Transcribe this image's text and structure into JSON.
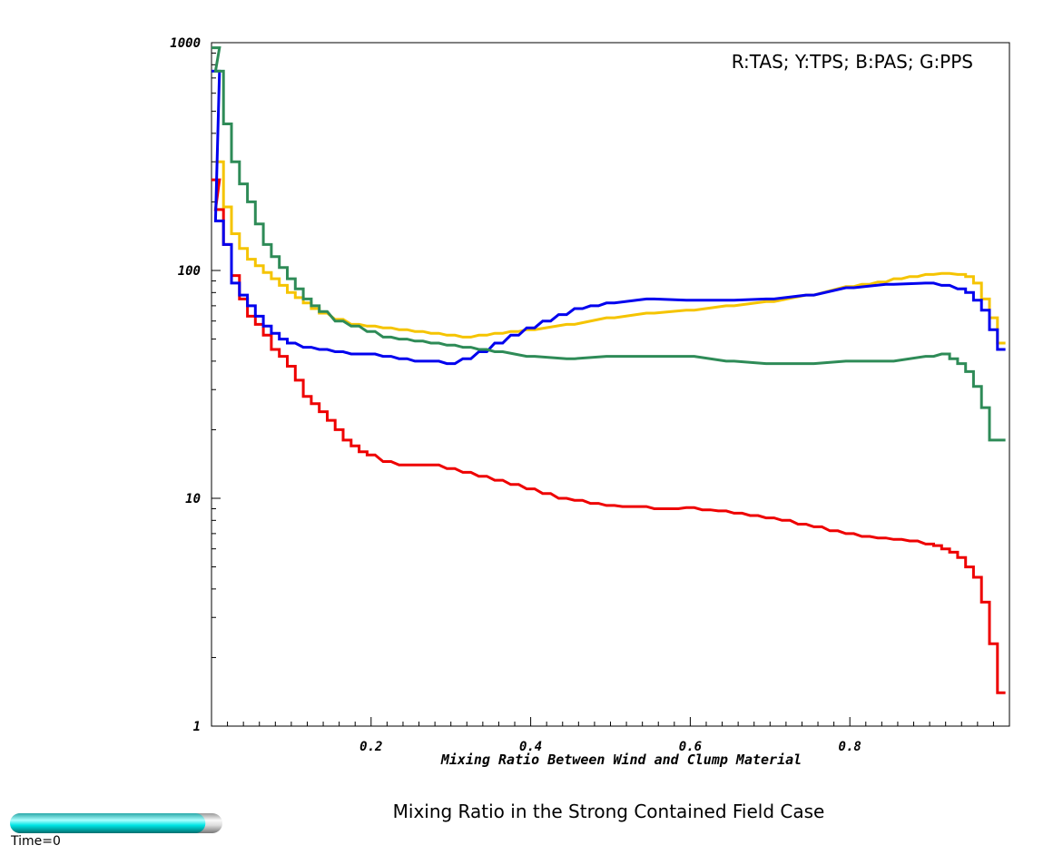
{
  "title": "Mixing Ratio in the Strong Contained Field Case",
  "time_label": "Time=0",
  "time_progress": 0.92,
  "chart_data": {
    "type": "line",
    "step": true,
    "xlabel": "Mixing Ratio Between Wind and Clump Material",
    "ylabel": "",
    "xlim": [
      0,
      1
    ],
    "ylim": [
      1,
      1000
    ],
    "yscale": "log",
    "xticks": [
      0.2,
      0.4,
      0.6,
      0.8
    ],
    "xtick_labels": [
      "0.2",
      "0.4",
      "0.6",
      "0.8"
    ],
    "yticks": [
      1,
      10,
      100,
      1000
    ],
    "ytick_labels": [
      "1",
      "10",
      "100",
      "1000"
    ],
    "legend_text": "R:TAS; Y:TPS; B:PAS; G:PPS",
    "legend_position": "top-right",
    "grid": false,
    "series": [
      {
        "key": "R",
        "color": "#ee0000",
        "x": [
          0.005,
          0.01,
          0.02,
          0.03,
          0.04,
          0.05,
          0.06,
          0.07,
          0.08,
          0.09,
          0.1,
          0.11,
          0.12,
          0.13,
          0.14,
          0.15,
          0.16,
          0.17,
          0.18,
          0.19,
          0.2,
          0.22,
          0.24,
          0.26,
          0.28,
          0.3,
          0.32,
          0.34,
          0.36,
          0.38,
          0.4,
          0.42,
          0.44,
          0.46,
          0.48,
          0.5,
          0.52,
          0.54,
          0.56,
          0.58,
          0.6,
          0.62,
          0.64,
          0.66,
          0.68,
          0.7,
          0.72,
          0.74,
          0.76,
          0.78,
          0.8,
          0.82,
          0.84,
          0.86,
          0.88,
          0.9,
          0.91,
          0.92,
          0.93,
          0.94,
          0.95,
          0.96,
          0.97,
          0.98,
          0.99
        ],
        "y": [
          250,
          185,
          130,
          95,
          75,
          63,
          58,
          52,
          45,
          42,
          38,
          33,
          28,
          26,
          24,
          22,
          20,
          18,
          17,
          16,
          15.5,
          14.5,
          14,
          14,
          14,
          13.5,
          13,
          12.5,
          12,
          11.5,
          11,
          10.5,
          10,
          9.8,
          9.5,
          9.3,
          9.2,
          9.2,
          9,
          9,
          9.1,
          8.9,
          8.8,
          8.6,
          8.4,
          8.2,
          8,
          7.7,
          7.5,
          7.2,
          7,
          6.8,
          6.7,
          6.6,
          6.5,
          6.3,
          6.2,
          6,
          5.8,
          5.5,
          5,
          4.5,
          3.5,
          2.3,
          1.4
        ]
      },
      {
        "key": "Y",
        "color": "#f5c400",
        "x": [
          0.01,
          0.02,
          0.03,
          0.04,
          0.05,
          0.06,
          0.07,
          0.08,
          0.09,
          0.1,
          0.11,
          0.12,
          0.13,
          0.14,
          0.16,
          0.18,
          0.2,
          0.22,
          0.24,
          0.26,
          0.28,
          0.3,
          0.32,
          0.34,
          0.36,
          0.38,
          0.4,
          0.45,
          0.5,
          0.55,
          0.6,
          0.65,
          0.7,
          0.75,
          0.8,
          0.82,
          0.84,
          0.86,
          0.88,
          0.9,
          0.92,
          0.94,
          0.95,
          0.96,
          0.97,
          0.98,
          0.99
        ],
        "y": [
          300,
          190,
          145,
          125,
          112,
          105,
          98,
          92,
          86,
          80,
          76,
          72,
          68,
          65,
          61,
          58,
          57,
          56,
          55,
          54,
          53,
          52,
          51,
          52,
          53,
          54,
          55,
          58,
          62,
          65,
          67,
          70,
          73,
          78,
          85,
          87,
          89,
          92,
          94,
          96,
          97,
          96,
          94,
          88,
          75,
          62,
          48
        ]
      },
      {
        "key": "B",
        "color": "#0000ee",
        "x": [
          0.005,
          0.01,
          0.02,
          0.03,
          0.04,
          0.05,
          0.06,
          0.07,
          0.08,
          0.09,
          0.1,
          0.12,
          0.14,
          0.16,
          0.18,
          0.2,
          0.22,
          0.24,
          0.26,
          0.28,
          0.3,
          0.32,
          0.34,
          0.36,
          0.38,
          0.4,
          0.42,
          0.44,
          0.46,
          0.48,
          0.5,
          0.55,
          0.6,
          0.65,
          0.7,
          0.75,
          0.8,
          0.85,
          0.9,
          0.92,
          0.94,
          0.95,
          0.96,
          0.97,
          0.98,
          0.99
        ],
        "y": [
          750,
          165,
          130,
          88,
          78,
          70,
          63,
          57,
          53,
          50,
          48,
          46,
          45,
          44,
          43,
          43,
          42,
          41,
          40,
          40,
          39,
          41,
          44,
          48,
          52,
          56,
          60,
          64,
          68,
          70,
          72,
          75,
          74,
          74,
          75,
          78,
          84,
          87,
          88,
          86,
          83,
          80,
          74,
          67,
          55,
          45
        ]
      },
      {
        "key": "G",
        "color": "#2e8b57",
        "x": [
          0.005,
          0.01,
          0.02,
          0.03,
          0.04,
          0.05,
          0.06,
          0.07,
          0.08,
          0.09,
          0.1,
          0.11,
          0.12,
          0.13,
          0.14,
          0.16,
          0.18,
          0.2,
          0.22,
          0.24,
          0.26,
          0.28,
          0.3,
          0.32,
          0.34,
          0.36,
          0.4,
          0.45,
          0.5,
          0.55,
          0.6,
          0.65,
          0.7,
          0.75,
          0.8,
          0.85,
          0.9,
          0.92,
          0.93,
          0.94,
          0.95,
          0.96,
          0.97,
          0.98,
          0.99
        ],
        "y": [
          950,
          750,
          440,
          300,
          240,
          200,
          160,
          130,
          115,
          103,
          92,
          83,
          75,
          70,
          66,
          60,
          57,
          54,
          51,
          50,
          49,
          48,
          47,
          46,
          45,
          44,
          42,
          41,
          42,
          42,
          42,
          40,
          39,
          39,
          40,
          40,
          42,
          43,
          41,
          39,
          36,
          31,
          25,
          18,
          18
        ]
      }
    ]
  }
}
